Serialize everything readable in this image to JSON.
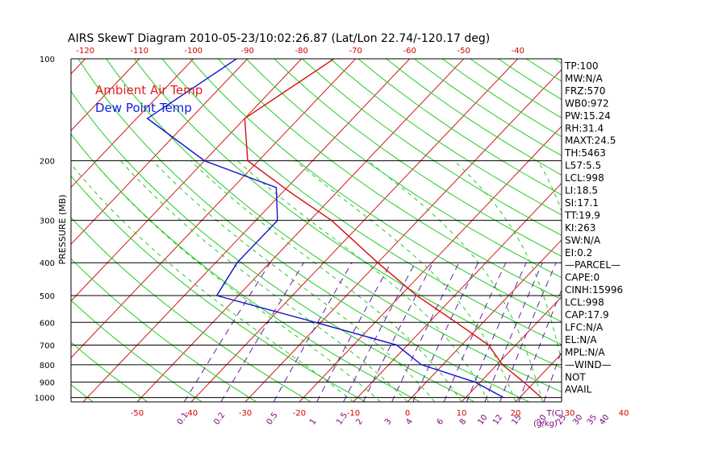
{
  "chart_data": {
    "type": "line",
    "title": "AIRS SkewT Diagram 2010-05-23/10:02:26.87 (Lat/Lon 22.74/-120.17 deg)",
    "ylabel": "PRESSURE (MB)",
    "x_unit_label": "T(C)",
    "mixing_ratio_unit_label": "(g/kg)",
    "y_scale": "log",
    "ylim": [
      1030,
      100
    ],
    "pressure_ticks": [
      "100",
      "200",
      "300",
      "400",
      "500",
      "600",
      "700",
      "800",
      "900",
      "1000"
    ],
    "temp_ticks_top": [
      "-120",
      "-110",
      "-100",
      "-90",
      "-80",
      "-70",
      "-60",
      "-50",
      "-40"
    ],
    "temp_ticks_bottom": [
      "-50",
      "-40",
      "-30",
      "-20",
      "-10",
      "0",
      "10",
      "20",
      "30",
      "40"
    ],
    "mixing_ratio_labels": [
      "0.1",
      "0.2",
      "0.5",
      "1",
      "1.5",
      "2",
      "3",
      "4",
      "6",
      "8",
      "10",
      "12",
      "15",
      "20",
      "25",
      "30",
      "35",
      "40"
    ],
    "legend": [
      {
        "label": "Ambient Air Temp",
        "color": "#e02020"
      },
      {
        "label": "Dew Point Temp",
        "color": "#1020e0"
      }
    ],
    "series": [
      {
        "name": "Ambient Air Temp",
        "color": "#d01010",
        "points": [
          [
            100,
            -74
          ],
          [
            150,
            -80
          ],
          [
            200,
            -72
          ],
          [
            250,
            -58
          ],
          [
            300,
            -46
          ],
          [
            400,
            -30
          ],
          [
            500,
            -17
          ],
          [
            600,
            -5
          ],
          [
            700,
            5
          ],
          [
            800,
            11
          ],
          [
            900,
            18
          ],
          [
            1000,
            24
          ]
        ]
      },
      {
        "name": "Dew Point Temp",
        "color": "#1010d0",
        "points": [
          [
            100,
            -92
          ],
          [
            150,
            -98
          ],
          [
            200,
            -80
          ],
          [
            240,
            -62
          ],
          [
            300,
            -56
          ],
          [
            400,
            -56
          ],
          [
            500,
            -54
          ],
          [
            600,
            -31
          ],
          [
            700,
            -12
          ],
          [
            800,
            -4
          ],
          [
            900,
            9
          ],
          [
            1000,
            17
          ]
        ]
      }
    ]
  },
  "indices": [
    "TP:100",
    "MW:N/A",
    "FRZ:570",
    "WB0:972",
    "PW:15.24",
    "RH:31.4",
    "MAXT:24.5",
    "TH:5463",
    "L57:5.5",
    "LCL:998",
    "LI:18.5",
    "SI:17.1",
    "TT:19.9",
    "KI:263",
    "SW:N/A",
    "EI:0.2",
    "—PARCEL—",
    "CAPE:0",
    "CINH:15996",
    "LCL:998",
    "CAP:17.9",
    "LFC:N/A",
    "EL:N/A",
    "MPL:N/A",
    "—WIND—",
    "NOT",
    "AVAIL"
  ]
}
